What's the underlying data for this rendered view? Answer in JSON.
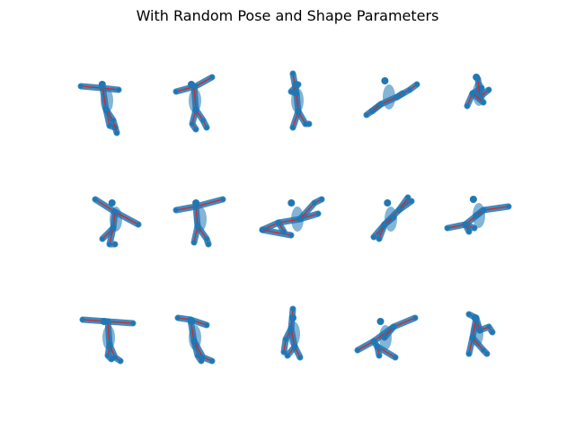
{
  "title": "With Random Pose and Shape Parameters",
  "colors": {
    "mesh": "#1f77b4",
    "skeleton": "#d62728"
  },
  "grid": {
    "rows": 3,
    "cols": 5
  }
}
